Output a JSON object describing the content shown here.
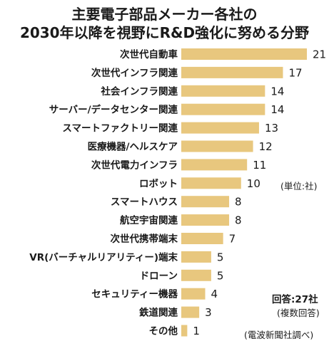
{
  "chart_data": {
    "type": "bar",
    "orientation": "horizontal",
    "title_line1": "主要電子部品メーカー各社の",
    "title_line2": "2030年以降を視野にR&D強化に努める分野",
    "categories": [
      "次世代自動車",
      "次世代インフラ関連",
      "社会インフラ関連",
      "サーバー/データセンター関連",
      "スマートファクトリー関連",
      "医療機器/ヘルスケア",
      "次世代電力インフラ",
      "ロボット",
      "スマートハウス",
      "航空宇宙関連",
      "次世代携帯端末",
      "VR(バーチャルリアリティー)端末",
      "ドローン",
      "セキュリティー機器",
      "鉄道関連",
      "その他"
    ],
    "values": [
      21,
      17,
      14,
      14,
      13,
      12,
      11,
      10,
      8,
      8,
      7,
      5,
      5,
      4,
      3,
      1
    ],
    "xlim": [
      0,
      21
    ],
    "bar_color": "#e8c77e",
    "unit_note": "(単位:社)",
    "answers_note": "回答:27社",
    "multiple_note": "(複数回答)",
    "source_note": "(電波新聞社調べ)"
  }
}
